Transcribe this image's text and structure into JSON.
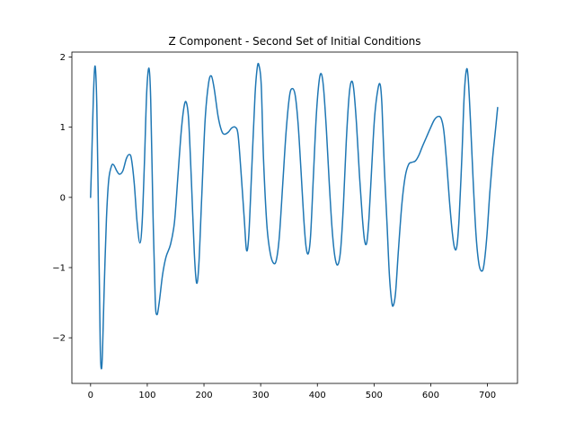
{
  "chart_data": {
    "type": "line",
    "title": "Z Component - Second Set of Initial Conditions",
    "xlabel": "",
    "ylabel": "",
    "xlim": [
      -33,
      753
    ],
    "ylim": [
      -2.65,
      2.07
    ],
    "xticks": [
      {
        "value": 0,
        "label": "0"
      },
      {
        "value": 100,
        "label": "100"
      },
      {
        "value": 200,
        "label": "200"
      },
      {
        "value": 300,
        "label": "300"
      },
      {
        "value": 400,
        "label": "400"
      },
      {
        "value": 500,
        "label": "500"
      },
      {
        "value": 600,
        "label": "600"
      },
      {
        "value": 700,
        "label": "700"
      }
    ],
    "yticks": [
      {
        "value": -2,
        "label": "−2"
      },
      {
        "value": -1,
        "label": "−1"
      },
      {
        "value": 0,
        "label": "0"
      },
      {
        "value": 1,
        "label": "1"
      },
      {
        "value": 2,
        "label": "2"
      }
    ],
    "grid": false,
    "legend": "none",
    "line_color": "#1f77b4",
    "series": [
      {
        "name": "",
        "points": [
          [
            0,
            0.0
          ],
          [
            2,
            0.55
          ],
          [
            5,
            1.45
          ],
          [
            8,
            1.87
          ],
          [
            11,
            1.3
          ],
          [
            14,
            -0.3
          ],
          [
            17,
            -2.1
          ],
          [
            19,
            -2.44
          ],
          [
            21,
            -2.2
          ],
          [
            24,
            -1.3
          ],
          [
            28,
            -0.3
          ],
          [
            32,
            0.25
          ],
          [
            37,
            0.45
          ],
          [
            41,
            0.46
          ],
          [
            46,
            0.38
          ],
          [
            51,
            0.33
          ],
          [
            57,
            0.38
          ],
          [
            63,
            0.55
          ],
          [
            68,
            0.61
          ],
          [
            72,
            0.55
          ],
          [
            77,
            0.2
          ],
          [
            82,
            -0.35
          ],
          [
            87,
            -0.65
          ],
          [
            91,
            -0.35
          ],
          [
            95,
            0.5
          ],
          [
            99,
            1.5
          ],
          [
            103,
            1.84
          ],
          [
            106,
            1.4
          ],
          [
            110,
            -0.2
          ],
          [
            114,
            -1.45
          ],
          [
            117,
            -1.67
          ],
          [
            121,
            -1.5
          ],
          [
            127,
            -1.1
          ],
          [
            133,
            -0.85
          ],
          [
            141,
            -0.67
          ],
          [
            148,
            -0.35
          ],
          [
            154,
            0.3
          ],
          [
            160,
            0.95
          ],
          [
            165,
            1.3
          ],
          [
            169,
            1.35
          ],
          [
            173,
            1.1
          ],
          [
            178,
            0.2
          ],
          [
            183,
            -0.8
          ],
          [
            187,
            -1.22
          ],
          [
            191,
            -0.95
          ],
          [
            196,
            0.0
          ],
          [
            202,
            1.1
          ],
          [
            208,
            1.62
          ],
          [
            213,
            1.73
          ],
          [
            218,
            1.55
          ],
          [
            225,
            1.15
          ],
          [
            231,
            0.95
          ],
          [
            236,
            0.9
          ],
          [
            243,
            0.93
          ],
          [
            249,
            0.99
          ],
          [
            255,
            1.0
          ],
          [
            260,
            0.9
          ],
          [
            265,
            0.4
          ],
          [
            271,
            -0.3
          ],
          [
            275,
            -0.75
          ],
          [
            279,
            -0.55
          ],
          [
            284,
            0.35
          ],
          [
            290,
            1.45
          ],
          [
            294,
            1.85
          ],
          [
            297,
            1.88
          ],
          [
            301,
            1.6
          ],
          [
            305,
            0.55
          ],
          [
            311,
            -0.4
          ],
          [
            317,
            -0.8
          ],
          [
            323,
            -0.94
          ],
          [
            328,
            -0.88
          ],
          [
            333,
            -0.55
          ],
          [
            339,
            0.2
          ],
          [
            345,
            0.95
          ],
          [
            351,
            1.45
          ],
          [
            356,
            1.55
          ],
          [
            361,
            1.45
          ],
          [
            366,
            1.05
          ],
          [
            371,
            0.4
          ],
          [
            376,
            -0.3
          ],
          [
            380,
            -0.7
          ],
          [
            384,
            -0.8
          ],
          [
            388,
            -0.55
          ],
          [
            393,
            0.3
          ],
          [
            398,
            1.15
          ],
          [
            403,
            1.65
          ],
          [
            407,
            1.76
          ],
          [
            411,
            1.55
          ],
          [
            416,
            0.95
          ],
          [
            421,
            0.2
          ],
          [
            426,
            -0.45
          ],
          [
            431,
            -0.85
          ],
          [
            436,
            -0.96
          ],
          [
            441,
            -0.75
          ],
          [
            446,
            -0.1
          ],
          [
            451,
            0.8
          ],
          [
            456,
            1.45
          ],
          [
            460,
            1.65
          ],
          [
            464,
            1.55
          ],
          [
            469,
            1.05
          ],
          [
            474,
            0.35
          ],
          [
            479,
            -0.25
          ],
          [
            483,
            -0.6
          ],
          [
            487,
            -0.65
          ],
          [
            491,
            -0.3
          ],
          [
            496,
            0.45
          ],
          [
            501,
            1.15
          ],
          [
            507,
            1.55
          ],
          [
            511,
            1.6
          ],
          [
            514,
            1.3
          ],
          [
            518,
            0.45
          ],
          [
            523,
            -0.4
          ],
          [
            527,
            -1.1
          ],
          [
            531,
            -1.48
          ],
          [
            534,
            -1.54
          ],
          [
            538,
            -1.35
          ],
          [
            543,
            -0.75
          ],
          [
            549,
            -0.1
          ],
          [
            555,
            0.3
          ],
          [
            561,
            0.47
          ],
          [
            567,
            0.5
          ],
          [
            573,
            0.52
          ],
          [
            579,
            0.6
          ],
          [
            585,
            0.72
          ],
          [
            592,
            0.85
          ],
          [
            599,
            0.98
          ],
          [
            606,
            1.1
          ],
          [
            612,
            1.15
          ],
          [
            618,
            1.13
          ],
          [
            623,
            0.95
          ],
          [
            628,
            0.5
          ],
          [
            633,
            -0.05
          ],
          [
            638,
            -0.5
          ],
          [
            642,
            -0.72
          ],
          [
            646,
            -0.7
          ],
          [
            650,
            -0.3
          ],
          [
            655,
            0.6
          ],
          [
            659,
            1.45
          ],
          [
            663,
            1.82
          ],
          [
            666,
            1.7
          ],
          [
            670,
            1.1
          ],
          [
            675,
            0.2
          ],
          [
            680,
            -0.55
          ],
          [
            685,
            -0.95
          ],
          [
            690,
            -1.05
          ],
          [
            694,
            -0.95
          ],
          [
            699,
            -0.55
          ],
          [
            704,
            0.05
          ],
          [
            709,
            0.55
          ],
          [
            714,
            0.95
          ],
          [
            718,
            1.28
          ]
        ]
      }
    ]
  }
}
